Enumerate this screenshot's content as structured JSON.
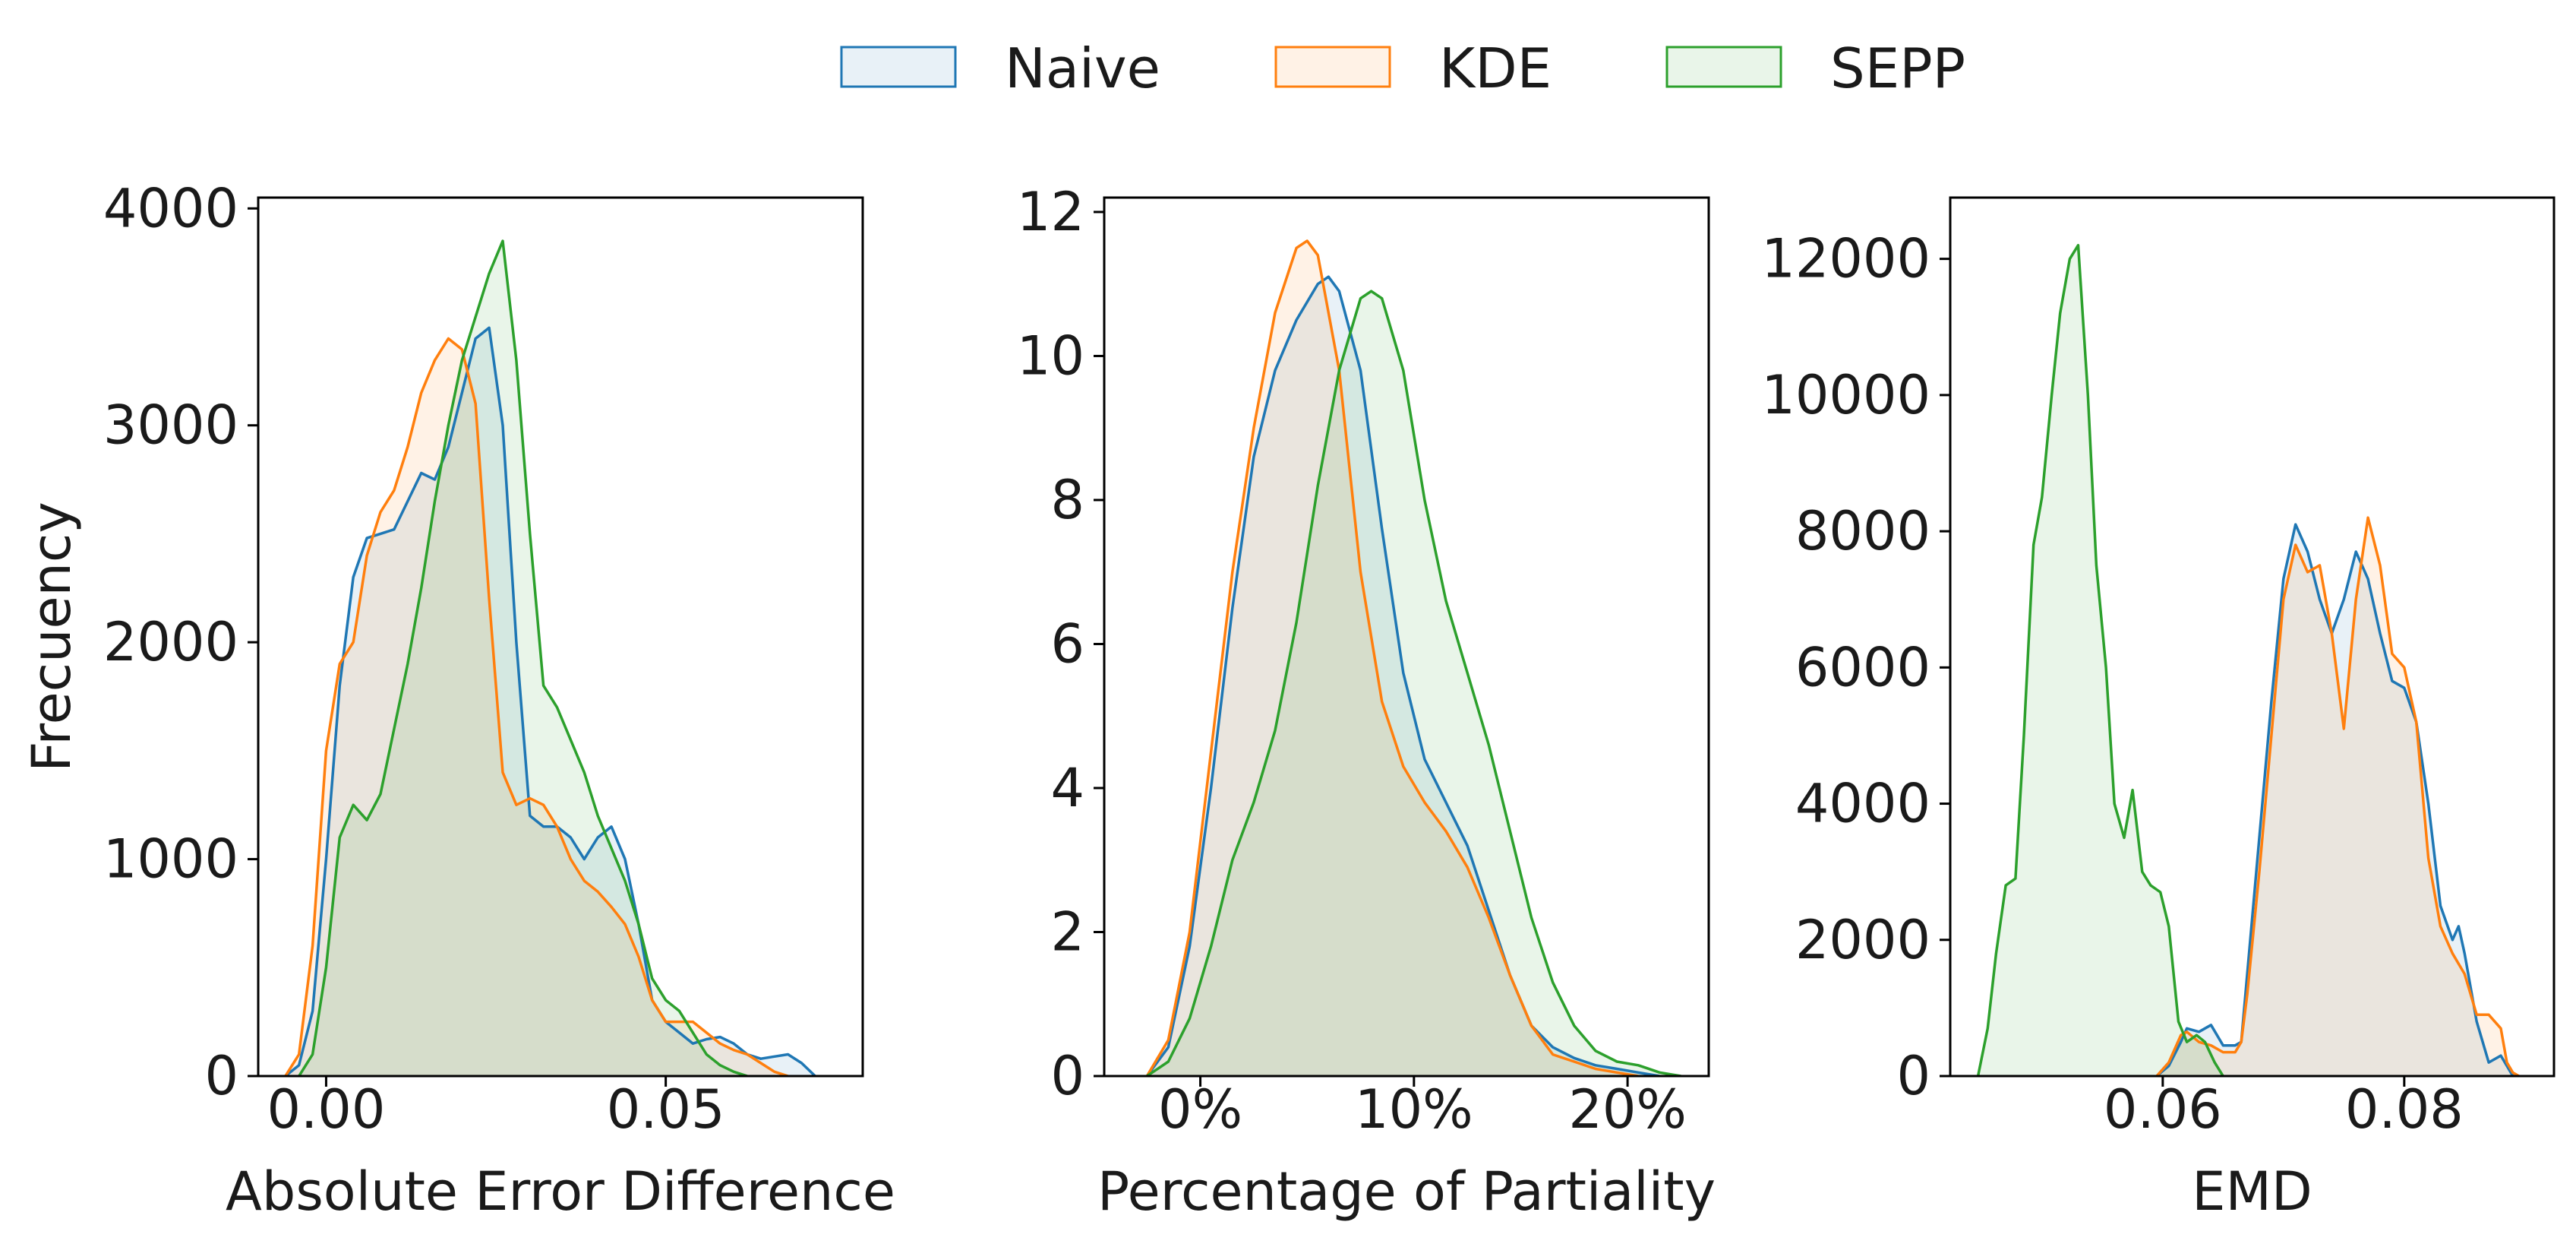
{
  "legend": {
    "placement": "top-center",
    "items": [
      {
        "label": "Naive",
        "color": "#1f77b4"
      },
      {
        "label": "KDE",
        "color": "#ff7f0e"
      },
      {
        "label": "SEPP",
        "color": "#2ca02c"
      }
    ]
  },
  "chart_data": [
    {
      "type": "area",
      "xlabel": "Absolute Error Difference",
      "ylabel": "Frecuency",
      "xlim": [
        -0.01,
        0.079
      ],
      "ylim": [
        0,
        4050
      ],
      "xticks": [
        {
          "value": 0.0,
          "label": "0.00"
        },
        {
          "value": 0.05,
          "label": "0.05"
        }
      ],
      "yticks": [
        {
          "value": 0,
          "label": "0"
        },
        {
          "value": 1000,
          "label": "1000"
        },
        {
          "value": 2000,
          "label": "2000"
        },
        {
          "value": 3000,
          "label": "3000"
        },
        {
          "value": 4000,
          "label": "4000"
        }
      ],
      "grid": false,
      "series": [
        {
          "name": "Naive",
          "x": [
            -0.006,
            -0.004,
            -0.002,
            0.0,
            0.002,
            0.004,
            0.006,
            0.008,
            0.01,
            0.012,
            0.014,
            0.016,
            0.018,
            0.02,
            0.022,
            0.024,
            0.026,
            0.028,
            0.03,
            0.032,
            0.034,
            0.036,
            0.038,
            0.04,
            0.042,
            0.044,
            0.046,
            0.048,
            0.05,
            0.052,
            0.054,
            0.056,
            0.058,
            0.06,
            0.062,
            0.064,
            0.066,
            0.068,
            0.07,
            0.072
          ],
          "y": [
            0,
            50,
            300,
            1000,
            1800,
            2300,
            2480,
            2500,
            2520,
            2650,
            2780,
            2750,
            2900,
            3150,
            3400,
            3450,
            3000,
            2000,
            1200,
            1150,
            1150,
            1100,
            1000,
            1100,
            1150,
            1000,
            700,
            350,
            250,
            200,
            150,
            170,
            180,
            150,
            100,
            80,
            90,
            100,
            60,
            0
          ]
        },
        {
          "name": "KDE",
          "x": [
            -0.006,
            -0.004,
            -0.002,
            0.0,
            0.002,
            0.004,
            0.006,
            0.008,
            0.01,
            0.012,
            0.014,
            0.016,
            0.018,
            0.02,
            0.022,
            0.024,
            0.026,
            0.028,
            0.03,
            0.032,
            0.034,
            0.036,
            0.038,
            0.04,
            0.042,
            0.044,
            0.046,
            0.048,
            0.05,
            0.052,
            0.054,
            0.056,
            0.058,
            0.06,
            0.062,
            0.064,
            0.066,
            0.068
          ],
          "y": [
            0,
            100,
            600,
            1500,
            1900,
            2000,
            2400,
            2600,
            2700,
            2900,
            3150,
            3300,
            3400,
            3350,
            3100,
            2200,
            1400,
            1250,
            1280,
            1250,
            1150,
            1000,
            900,
            850,
            780,
            700,
            550,
            350,
            250,
            250,
            250,
            200,
            150,
            120,
            100,
            60,
            20,
            0
          ]
        },
        {
          "name": "SEPP",
          "x": [
            -0.004,
            -0.002,
            0.0,
            0.002,
            0.004,
            0.006,
            0.008,
            0.01,
            0.012,
            0.014,
            0.016,
            0.018,
            0.02,
            0.022,
            0.024,
            0.026,
            0.028,
            0.03,
            0.032,
            0.034,
            0.036,
            0.038,
            0.04,
            0.042,
            0.044,
            0.046,
            0.048,
            0.05,
            0.052,
            0.054,
            0.056,
            0.058,
            0.06,
            0.062
          ],
          "y": [
            0,
            100,
            500,
            1100,
            1250,
            1180,
            1300,
            1600,
            1900,
            2250,
            2650,
            3000,
            3300,
            3500,
            3700,
            3850,
            3300,
            2500,
            1800,
            1700,
            1550,
            1400,
            1200,
            1050,
            900,
            700,
            450,
            350,
            300,
            200,
            100,
            50,
            20,
            0
          ]
        }
      ]
    },
    {
      "type": "area",
      "xlabel": "Percentage of Partiality",
      "ylabel": "",
      "xlim": [
        -4.5,
        23.8
      ],
      "ylim": [
        0,
        12.2
      ],
      "xticks": [
        {
          "value": 0,
          "label": "0%"
        },
        {
          "value": 10,
          "label": "10%"
        },
        {
          "value": 20,
          "label": "20%"
        }
      ],
      "yticks": [
        {
          "value": 0,
          "label": "0"
        },
        {
          "value": 2,
          "label": "2"
        },
        {
          "value": 4,
          "label": "4"
        },
        {
          "value": 6,
          "label": "6"
        },
        {
          "value": 8,
          "label": "8"
        },
        {
          "value": 10,
          "label": "10"
        },
        {
          "value": 12,
          "label": "12"
        }
      ],
      "grid": false,
      "series": [
        {
          "name": "Naive",
          "x": [
            -2.5,
            -1.5,
            -0.5,
            0.5,
            1.5,
            2.5,
            3.5,
            4.5,
            5.5,
            6.0,
            6.5,
            7.5,
            8.5,
            9.5,
            10.5,
            11.5,
            12.5,
            13.5,
            14.5,
            15.5,
            16.5,
            17.5,
            18.5,
            19.5,
            20.5,
            21.5
          ],
          "y": [
            0,
            0.4,
            1.8,
            4.0,
            6.5,
            8.6,
            9.8,
            10.5,
            11.0,
            11.1,
            10.9,
            9.8,
            7.6,
            5.6,
            4.4,
            3.8,
            3.2,
            2.3,
            1.4,
            0.7,
            0.4,
            0.25,
            0.15,
            0.1,
            0.05,
            0
          ]
        },
        {
          "name": "KDE",
          "x": [
            -2.5,
            -1.5,
            -0.5,
            0.5,
            1.5,
            2.5,
            3.5,
            4.5,
            5.0,
            5.5,
            6.5,
            7.5,
            8.5,
            9.5,
            10.5,
            11.5,
            12.5,
            13.5,
            14.5,
            15.5,
            16.5,
            17.5,
            18.5,
            19.5,
            20.5
          ],
          "y": [
            0,
            0.5,
            2.0,
            4.5,
            7.0,
            9.0,
            10.6,
            11.5,
            11.6,
            11.4,
            9.8,
            7.0,
            5.2,
            4.3,
            3.8,
            3.4,
            2.9,
            2.2,
            1.4,
            0.7,
            0.3,
            0.2,
            0.1,
            0.05,
            0
          ]
        },
        {
          "name": "SEPP",
          "x": [
            -2.5,
            -1.5,
            -0.5,
            0.5,
            1.5,
            2.5,
            3.5,
            4.5,
            5.5,
            6.5,
            7.5,
            8.0,
            8.5,
            9.5,
            10.5,
            11.5,
            12.5,
            13.5,
            14.5,
            15.5,
            16.5,
            17.5,
            18.5,
            19.5,
            20.5,
            21.5,
            22.5
          ],
          "y": [
            0,
            0.2,
            0.8,
            1.8,
            3.0,
            3.8,
            4.8,
            6.3,
            8.2,
            9.8,
            10.8,
            10.9,
            10.8,
            9.8,
            8.0,
            6.6,
            5.6,
            4.6,
            3.4,
            2.2,
            1.3,
            0.7,
            0.35,
            0.2,
            0.15,
            0.05,
            0
          ]
        }
      ]
    },
    {
      "type": "area",
      "xlabel": "EMD",
      "ylabel": "",
      "xlim": [
        0.0424,
        0.0924
      ],
      "ylim": [
        0,
        12900
      ],
      "xticks": [
        {
          "value": 0.06,
          "label": "0.06"
        },
        {
          "value": 0.08,
          "label": "0.08"
        }
      ],
      "yticks": [
        {
          "value": 0,
          "label": "0"
        },
        {
          "value": 2000,
          "label": "2000"
        },
        {
          "value": 4000,
          "label": "4000"
        },
        {
          "value": 6000,
          "label": "6000"
        },
        {
          "value": 8000,
          "label": "8000"
        },
        {
          "value": 10000,
          "label": "10000"
        },
        {
          "value": 12000,
          "label": "12000"
        }
      ],
      "grid": false,
      "series": [
        {
          "name": "Naive",
          "x": [
            0.0595,
            0.0605,
            0.0615,
            0.062,
            0.063,
            0.064,
            0.065,
            0.066,
            0.0665,
            0.067,
            0.068,
            0.069,
            0.07,
            0.071,
            0.072,
            0.073,
            0.074,
            0.075,
            0.076,
            0.077,
            0.078,
            0.079,
            0.08,
            0.081,
            0.082,
            0.083,
            0.084,
            0.0845,
            0.085,
            0.086,
            0.087,
            0.088,
            0.0885,
            0.089
          ],
          "y": [
            0,
            150,
            500,
            700,
            650,
            750,
            450,
            450,
            500,
            1500,
            3500,
            5500,
            7300,
            8100,
            7700,
            7000,
            6500,
            7000,
            7700,
            7300,
            6500,
            5800,
            5700,
            5200,
            4000,
            2500,
            2000,
            2200,
            1800,
            800,
            200,
            300,
            150,
            0
          ]
        },
        {
          "name": "KDE",
          "x": [
            0.0595,
            0.0605,
            0.0615,
            0.062,
            0.063,
            0.064,
            0.065,
            0.066,
            0.0665,
            0.067,
            0.068,
            0.069,
            0.07,
            0.071,
            0.072,
            0.073,
            0.074,
            0.075,
            0.076,
            0.077,
            0.078,
            0.079,
            0.08,
            0.081,
            0.082,
            0.083,
            0.084,
            0.085,
            0.086,
            0.087,
            0.088,
            0.0885,
            0.089,
            0.0895
          ],
          "y": [
            0,
            200,
            600,
            650,
            500,
            450,
            350,
            350,
            500,
            1200,
            3000,
            5000,
            7000,
            7800,
            7400,
            7500,
            6500,
            5100,
            7000,
            8200,
            7500,
            6200,
            6000,
            5200,
            3200,
            2200,
            1800,
            1500,
            900,
            900,
            700,
            200,
            50,
            0
          ]
        },
        {
          "name": "SEPP",
          "x": [
            0.0447,
            0.0455,
            0.0462,
            0.047,
            0.0478,
            0.0485,
            0.0493,
            0.05,
            0.0508,
            0.0515,
            0.0523,
            0.053,
            0.0538,
            0.0545,
            0.0553,
            0.056,
            0.0568,
            0.0575,
            0.0583,
            0.059,
            0.0598,
            0.0605,
            0.0613,
            0.062,
            0.0628,
            0.0635,
            0.0643,
            0.065
          ],
          "y": [
            0,
            700,
            1800,
            2800,
            2900,
            5000,
            7800,
            8500,
            10000,
            11200,
            12000,
            12200,
            10000,
            7500,
            6000,
            4000,
            3500,
            4200,
            3000,
            2800,
            2700,
            2200,
            800,
            500,
            600,
            500,
            200,
            0
          ]
        }
      ]
    }
  ]
}
